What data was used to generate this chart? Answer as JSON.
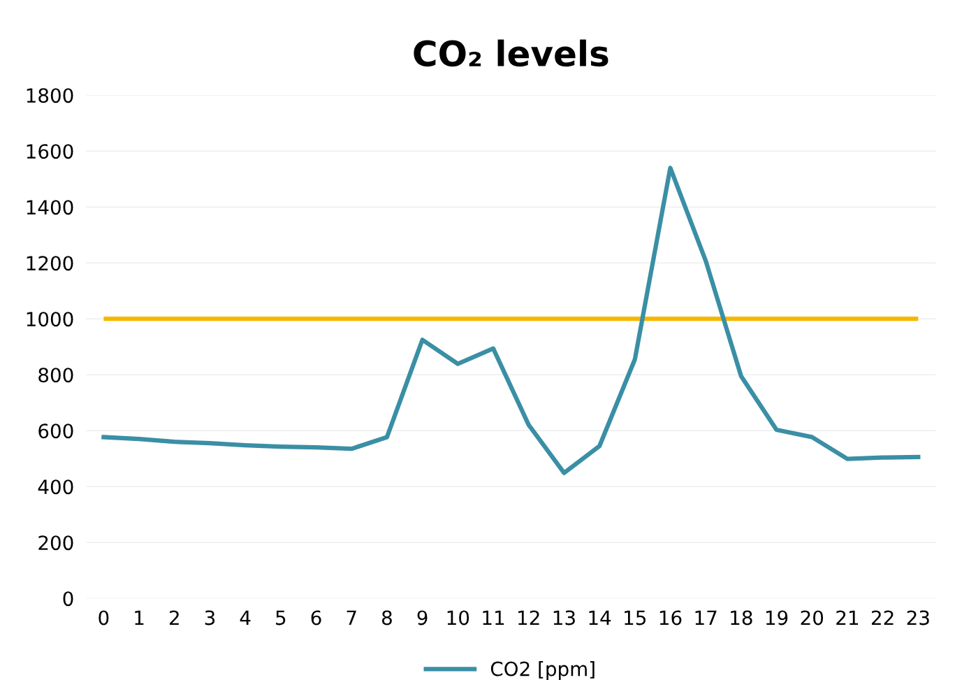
{
  "chart_data": {
    "type": "line",
    "title": "CO₂ levels",
    "categories": [
      "0",
      "1",
      "2",
      "3",
      "4",
      "5",
      "6",
      "7",
      "8",
      "9",
      "10",
      "11",
      "12",
      "13",
      "14",
      "15",
      "16",
      "17",
      "18",
      "19",
      "20",
      "21",
      "22",
      "23"
    ],
    "series": [
      {
        "name": "CO2 [ppm]",
        "color": "#3a8fa5",
        "values": [
          577,
          570,
          560,
          555,
          548,
          543,
          540,
          535,
          577,
          925,
          839,
          894,
          621,
          449,
          545,
          855,
          1540,
          1208,
          795,
          603,
          577,
          499,
          504,
          506
        ]
      }
    ],
    "ylim": [
      0,
      1800
    ],
    "yticks": [
      0,
      200,
      400,
      600,
      800,
      1000,
      1200,
      1400,
      1600,
      1800
    ],
    "ref_lines": [
      {
        "axis": "y",
        "value": 1000,
        "color": "#f5b800",
        "line_style": "solid"
      }
    ],
    "grid": "y",
    "legend": "bottom",
    "marker": "none",
    "line_style": "solid"
  }
}
